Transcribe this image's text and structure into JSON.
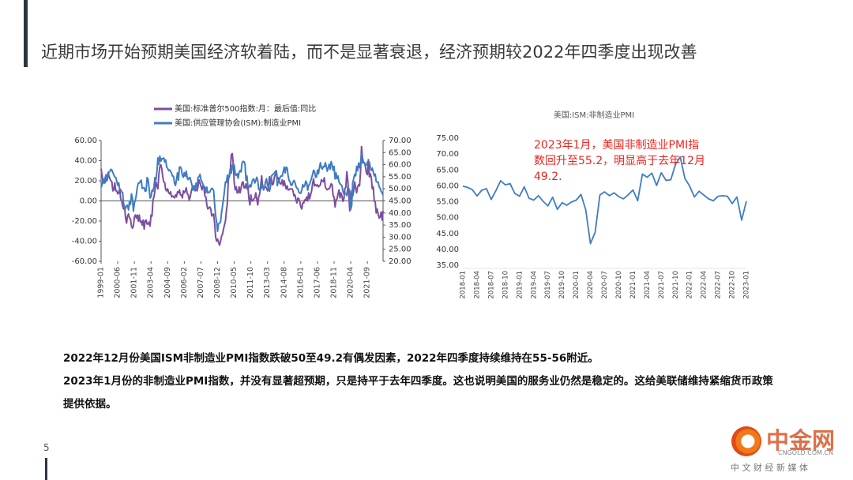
{
  "title": "近期市场开始预期美国经济软着陆，而不是显著衰退，经济预期较2022年四季度出现改善",
  "paragraphs": [
    "2022年12月份美国ISM非制造业PMI指数跌破50至49.2有偶发因素，2022年四季度持续维持在55-56附近。",
    "2023年1月份的非制造业PMI指数，并没有显著超预期，只是持平于去年四季度。这也说明美国的服务业仍然是稳定的。这给美联储维持紧缩货币政策提供依据。"
  ],
  "page_number": "5",
  "watermark": {
    "name": "中金网",
    "site": "CNGOLD.COM.CN",
    "tagline": "中 文 财 经 新 媒 体"
  },
  "chart_data": [
    {
      "type": "line",
      "legend": "top",
      "grid": false,
      "categories": [
        "1999-01",
        null,
        null,
        null,
        null,
        null,
        null,
        null,
        null,
        null,
        null,
        null,
        null,
        null,
        null,
        null,
        null,
        "2000-06",
        null,
        null,
        null,
        null,
        null,
        null,
        null,
        null,
        null,
        null,
        null,
        null,
        null,
        null,
        null,
        null,
        "2001-11",
        null,
        null,
        null,
        null,
        null,
        null,
        null,
        null,
        null,
        null,
        null,
        null,
        null,
        null,
        null,
        null,
        "2003-04",
        null,
        null,
        null,
        null,
        null,
        null,
        null,
        null,
        null,
        null,
        null,
        null,
        null,
        null,
        null,
        null,
        "2004-09",
        null,
        null,
        null,
        null,
        null,
        null,
        null,
        null,
        null,
        null,
        null,
        null,
        null,
        null,
        null,
        null,
        "2006-02",
        null,
        null,
        null,
        null,
        null,
        null,
        null,
        null,
        null,
        null,
        null,
        null,
        null,
        null,
        null,
        null,
        "2007-07",
        null,
        null,
        null,
        null,
        null,
        null,
        null,
        null,
        null,
        null,
        null,
        null,
        null,
        null,
        null,
        null,
        "2008-12",
        null,
        null,
        null,
        null,
        null,
        null,
        null,
        null,
        null,
        null,
        null,
        null,
        null,
        null,
        null,
        null,
        "2010-05",
        null,
        null,
        null,
        null,
        null,
        null,
        null,
        null,
        null,
        null,
        null,
        null,
        null,
        null,
        null,
        null,
        "2011-10",
        null,
        null,
        null,
        null,
        null,
        null,
        null,
        null,
        null,
        null,
        null,
        null,
        null,
        null,
        null,
        null,
        "2013-03",
        null,
        null,
        null,
        null,
        null,
        null,
        null,
        null,
        null,
        null,
        null,
        null,
        null,
        null,
        null,
        null,
        "2014-08",
        null,
        null,
        null,
        null,
        null,
        null,
        null,
        null,
        null,
        null,
        null,
        null,
        null,
        null,
        null,
        null,
        "2016-01",
        null,
        null,
        null,
        null,
        null,
        null,
        null,
        null,
        null,
        null,
        null,
        null,
        null,
        null,
        null,
        null,
        "2017-06",
        null,
        null,
        null,
        null,
        null,
        null,
        null,
        null,
        null,
        null,
        null,
        null,
        null,
        null,
        null,
        null,
        "2018-11",
        null,
        null,
        null,
        null,
        null,
        null,
        null,
        null,
        null,
        null,
        null,
        null,
        null,
        null,
        null,
        null,
        "2020-04",
        null,
        null,
        null,
        null,
        null,
        null,
        null,
        null,
        null,
        null,
        null,
        null,
        null,
        null,
        null,
        null,
        "2021-09",
        null,
        null,
        null,
        null,
        null,
        null,
        null,
        null,
        null,
        null,
        null,
        null,
        null,
        null,
        null,
        null
      ],
      "series": [
        {
          "name": "美国:标准普尔500指数:月：最后值:同比",
          "color": "#7b4fa0",
          "axis": "y",
          "values": [
            32,
            25,
            18,
            20,
            18,
            22,
            20,
            28,
            25,
            22,
            20,
            19,
            10,
            11,
            18,
            10,
            10,
            7,
            8,
            12,
            2,
            0,
            -5,
            -8,
            -6,
            -17,
            -22,
            -15,
            -13,
            -17,
            -18,
            -25,
            -27,
            -25,
            -16,
            -14,
            -17,
            -14,
            -20,
            -14,
            -21,
            -20,
            -24,
            -19,
            -28,
            -20,
            -19,
            -23,
            -23,
            -21,
            -25,
            -14,
            -15,
            1,
            4,
            10,
            19,
            15,
            12,
            26,
            34,
            36,
            32,
            24,
            19,
            18,
            11,
            10,
            12,
            8,
            7,
            9,
            4,
            5,
            4,
            3,
            6,
            4,
            9,
            8,
            11,
            6,
            6,
            3,
            10,
            8,
            10,
            13,
            7,
            6,
            1,
            4,
            9,
            13,
            12,
            14,
            10,
            12,
            10,
            14,
            21,
            18,
            15,
            11,
            15,
            13,
            5,
            4,
            -4,
            -8,
            -7,
            -6,
            -8,
            -15,
            -14,
            -13,
            -23,
            -36,
            -40,
            -38,
            -41,
            -44,
            -40,
            -35,
            -33,
            -28,
            -24,
            -20,
            -10,
            -2,
            23,
            24,
            30,
            46,
            47,
            37,
            18,
            11,
            14,
            8,
            8,
            14,
            8,
            13,
            18,
            19,
            13,
            13,
            17,
            12,
            14,
            2,
            -4,
            6,
            0,
            0,
            2,
            3,
            8,
            2,
            -4,
            4,
            7,
            15,
            25,
            13,
            13,
            13,
            14,
            13,
            10,
            13,
            24,
            17,
            22,
            16,
            17,
            24,
            26,
            30,
            22,
            23,
            19,
            17,
            17,
            21,
            15,
            20,
            16,
            12,
            15,
            11,
            11,
            12,
            12,
            12,
            10,
            5,
            6,
            1,
            -2,
            3,
            2,
            -1,
            -6,
            -8,
            -2,
            -2,
            1,
            1,
            4,
            0,
            8,
            2,
            6,
            10,
            17,
            22,
            15,
            16,
            15,
            16,
            14,
            15,
            16,
            21,
            20,
            19,
            23,
            14,
            12,
            11,
            12,
            12,
            14,
            17,
            16,
            5,
            4,
            -6,
            1,
            2,
            7,
            11,
            3,
            8,
            5,
            -0.4,
            2,
            12,
            14,
            29,
            20,
            7,
            -10,
            1,
            10,
            5,
            10,
            19,
            13,
            8,
            14,
            16,
            15,
            29,
            54,
            43,
            38,
            38,
            34,
            28,
            26,
            41,
            24,
            27,
            23,
            12,
            14,
            0,
            -1,
            -12,
            -8,
            -13,
            -17,
            -16,
            -11,
            -19,
            -10
          ]
        },
        {
          "name": "美国:供应管理协会(ISM):制造业PMI",
          "color": "#3f7cc3",
          "axis": "y2",
          "values": [
            50.6,
            51.7,
            54.3,
            52.4,
            54.3,
            55.8,
            53.6,
            54.8,
            57.0,
            57.2,
            58.1,
            57.8,
            56.7,
            55.8,
            54.9,
            54.7,
            53.2,
            51.4,
            52.5,
            49.9,
            49.7,
            48.7,
            48.5,
            43.9,
            42.3,
            41.9,
            43.1,
            43.2,
            41.3,
            44.7,
            43.6,
            47.9,
            46.2,
            40.8,
            44.1,
            45.3,
            47.5,
            50.7,
            52.4,
            52.4,
            53.1,
            53.6,
            50.2,
            50.3,
            50.5,
            49.0,
            49.2,
            54.7,
            53.9,
            50.5,
            46.2,
            46.7,
            49.4,
            49.0,
            51.0,
            54.7,
            53.7,
            57.0,
            62.8,
            60.1,
            63.6,
            61.4,
            62.5,
            62.4,
            62.8,
            61.1,
            62.0,
            59.0,
            58.5,
            57.5,
            57.8,
            57.3,
            56.4,
            55.3,
            55.2,
            52.3,
            51.4,
            53.8,
            56.6,
            53.6,
            59.0,
            59.1,
            58.1,
            55.6,
            54.8,
            56.7,
            55.2,
            57.3,
            54.4,
            53.8,
            54.7,
            54.5,
            52.9,
            51.2,
            49.5,
            51.4,
            49.3,
            52.3,
            50.7,
            54.7,
            55.0,
            56.0,
            53.8,
            52.9,
            52.0,
            50.9,
            50.8,
            48.4,
            50.7,
            48.3,
            48.6,
            48.6,
            49.6,
            50.2,
            50.0,
            49.2,
            43.5,
            38.9,
            36.2,
            32.4,
            35.6,
            35.8,
            36.3,
            40.1,
            42.8,
            45.8,
            49.1,
            52.9,
            52.6,
            55.7,
            53.6,
            55.9,
            58.4,
            56.5,
            59.6,
            60.4,
            59.7,
            56.2,
            55.5,
            56.3,
            54.4,
            56.9,
            57.6,
            57.0,
            60.8,
            61.4,
            61.2,
            60.4,
            53.5,
            55.3,
            50.9,
            50.6,
            51.6,
            50.8,
            52.7,
            53.9,
            54.1,
            52.4,
            53.4,
            54.8,
            53.5,
            49.7,
            49.8,
            49.6,
            51.5,
            51.7,
            49.5,
            50.7,
            53.1,
            54.2,
            51.3,
            50.7,
            49.0,
            50.9,
            55.4,
            55.7,
            56.2,
            56.4,
            57.3,
            57.0,
            51.3,
            53.2,
            53.7,
            54.9,
            55.4,
            55.3,
            57.1,
            59.0,
            56.6,
            59.0,
            58.7,
            55.5,
            53.5,
            52.9,
            51.5,
            51.5,
            52.8,
            53.5,
            52.7,
            51.1,
            50.2,
            50.1,
            48.6,
            48.2,
            48.2,
            49.5,
            51.8,
            50.8,
            51.3,
            53.2,
            52.6,
            49.4,
            51.5,
            51.9,
            53.2,
            54.5,
            56.0,
            57.7,
            57.2,
            54.8,
            54.9,
            57.8,
            56.3,
            58.8,
            60.8,
            58.7,
            58.2,
            59.3,
            59.1,
            60.8,
            59.3,
            57.3,
            58.7,
            60.2,
            58.1,
            61.3,
            59.8,
            57.7,
            59.3,
            54.1,
            56.6,
            54.2,
            55.3,
            52.8,
            52.1,
            51.7,
            51.2,
            49.1,
            47.8,
            48.3,
            48.1,
            47.2,
            50.9,
            50.1,
            49.1,
            41.5,
            43.1,
            52.6,
            54.2,
            56.0,
            55.4,
            59.3,
            57.5,
            60.7,
            58.7,
            60.8,
            64.7,
            60.7,
            61.2,
            60.6,
            59.5,
            59.9,
            61.1,
            60.8,
            61.1,
            58.8,
            57.6,
            58.6,
            57.1,
            55.4,
            56.1,
            53.0,
            52.8,
            52.8,
            50.9,
            50.2,
            49.0,
            48.4,
            47.4
          ]
        }
      ],
      "ylim": [
        -60,
        60
      ],
      "yticks": [
        {
          "value": -60,
          "label": "-60.00"
        },
        {
          "value": -40,
          "label": "-40.00"
        },
        {
          "value": -20,
          "label": "-20.00"
        },
        {
          "value": 0,
          "label": "0.00"
        },
        {
          "value": 20,
          "label": "20.00"
        },
        {
          "value": 40,
          "label": "40.00"
        },
        {
          "value": 60,
          "label": "60.00"
        }
      ],
      "y2lim": [
        20,
        70
      ],
      "y2ticks": [
        {
          "value": 20,
          "label": "20.00"
        },
        {
          "value": 25,
          "label": "25.00"
        },
        {
          "value": 30,
          "label": "30.00"
        },
        {
          "value": 35,
          "label": "35.00"
        },
        {
          "value": 40,
          "label": "40.00"
        },
        {
          "value": 45,
          "label": "45.00"
        },
        {
          "value": 50,
          "label": "50.00"
        },
        {
          "value": 55,
          "label": "55.00"
        },
        {
          "value": 60,
          "label": "60.00"
        },
        {
          "value": 65,
          "label": "65.00"
        },
        {
          "value": 70,
          "label": "70.00"
        }
      ]
    },
    {
      "type": "line",
      "title": "美国:ISM:非制造业PMI",
      "grid": false,
      "annotation": [
        "2023年1月，美国非制造业PMI指",
        "数回升至55.2，明显高于去年12月",
        "49.2."
      ],
      "annotation_color": "#e8251e",
      "categories": [
        "2018-01",
        null,
        null,
        "2018-04",
        null,
        null,
        "2018-07",
        null,
        null,
        "2018-10",
        null,
        null,
        "2019-01",
        null,
        null,
        "2019-04",
        null,
        null,
        "2019-07",
        null,
        null,
        "2019-10",
        null,
        null,
        "2020-01",
        null,
        null,
        "2020-04",
        null,
        null,
        "2020-07",
        null,
        null,
        "2020-10",
        null,
        null,
        "2021-01",
        null,
        null,
        "2021-04",
        null,
        null,
        "2021-07",
        null,
        null,
        "2021-10",
        null,
        null,
        "2022-01",
        null,
        null,
        "2022-04",
        null,
        null,
        "2022-07",
        null,
        null,
        "2022-10",
        null,
        null,
        "2023-01"
      ],
      "series": [
        {
          "name": "美国:ISM:非制造业PMI",
          "color": "#3f7cc3",
          "axis": "y",
          "values": [
            59.9,
            59.5,
            58.8,
            56.8,
            58.6,
            59.1,
            55.7,
            58.5,
            61.6,
            60.3,
            60.7,
            57.6,
            56.7,
            59.7,
            56.1,
            55.5,
            56.9,
            55.1,
            53.7,
            56.4,
            52.6,
            54.7,
            53.9,
            54.9,
            55.5,
            57.3,
            52.5,
            41.8,
            45.4,
            57.1,
            58.1,
            56.9,
            57.8,
            56.6,
            55.9,
            57.2,
            58.7,
            55.3,
            63.7,
            62.7,
            64.0,
            60.1,
            64.1,
            61.7,
            61.9,
            66.7,
            69.1,
            62.3,
            59.9,
            56.5,
            58.3,
            57.1,
            55.9,
            55.3,
            56.7,
            56.9,
            56.7,
            54.4,
            56.5,
            49.2,
            55.2
          ]
        }
      ],
      "ylim": [
        35,
        75
      ],
      "yticks": [
        {
          "value": 35,
          "label": "35.00"
        },
        {
          "value": 40,
          "label": "40.00"
        },
        {
          "value": 45,
          "label": "45.00"
        },
        {
          "value": 50,
          "label": "50.00"
        },
        {
          "value": 55,
          "label": "55.00"
        },
        {
          "value": 60,
          "label": "60.00"
        },
        {
          "value": 65,
          "label": "65.00"
        },
        {
          "value": 70,
          "label": "70.00"
        },
        {
          "value": 75,
          "label": "75.00"
        }
      ]
    }
  ]
}
